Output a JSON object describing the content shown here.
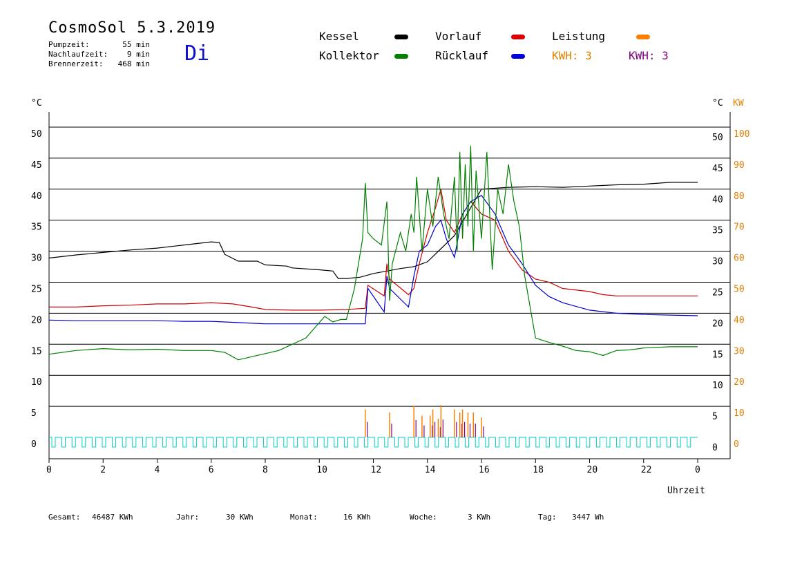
{
  "header": {
    "title": "CosmoSol 5.3.2019",
    "weekday": "Di",
    "stats": [
      {
        "label": "Pumpzeit:",
        "value": "55 min"
      },
      {
        "label": "Nachlaufzeit:",
        "value": "9 min"
      },
      {
        "label": "Brennerzeit:",
        "value": "468 min"
      }
    ]
  },
  "legend": {
    "kessel": "Kessel",
    "kollektor": "Kollektor",
    "vorlauf": "Vorlauf",
    "ruecklauf": "Rücklauf",
    "leistung": "Leistung",
    "kwh1": "KWH: 3",
    "kwh2": "KWH: 3"
  },
  "footer": [
    {
      "label": "Gesamt:",
      "value": "46487 KWh"
    },
    {
      "label": "Jahr:",
      "value": "30 KWh"
    },
    {
      "label": "Monat:",
      "value": "16 KWh"
    },
    {
      "label": "Woche:",
      "value": "3 KWh"
    },
    {
      "label": "Tag:",
      "value": "3447 Wh"
    }
  ],
  "chart_data": {
    "type": "line",
    "title": "CosmoSol 5.3.2019",
    "xlabel": "Uhrzeit",
    "ylabel_left": "°C",
    "ylabel_right": "°C",
    "ylabel_right2": "KW",
    "xlim": [
      0,
      24
    ],
    "ylim": [
      0,
      50
    ],
    "y2lim": [
      0,
      100
    ],
    "x_ticks": [
      "0",
      "2",
      "4",
      "6",
      "8",
      "10",
      "12",
      "14",
      "16",
      "18",
      "20",
      "22",
      "0"
    ],
    "y_ticks": [
      "0",
      "5",
      "10",
      "15",
      "20",
      "25",
      "30",
      "35",
      "40",
      "45",
      "50"
    ],
    "y2_ticks": [
      "0",
      "10",
      "20",
      "30",
      "40",
      "50",
      "60",
      "70",
      "80",
      "90",
      "100"
    ],
    "grid": true,
    "colors": {
      "kessel": "#000000",
      "kollektor": "#008000",
      "vorlauf": "#cc0000",
      "ruecklauf": "#0000cc",
      "leistung": "#ff8000",
      "kwh2": "#800080",
      "pump": "#00cccc",
      "axis_right2": "#e08000"
    },
    "series": [
      {
        "name": "Kessel",
        "color": "#000000",
        "x": [
          0,
          1,
          2,
          3,
          4,
          5,
          6,
          6.3,
          6.5,
          7,
          7.7,
          8,
          8.8,
          9,
          10,
          10.5,
          10.7,
          11,
          11.5,
          12,
          12.5,
          13,
          13.5,
          14,
          15,
          16,
          17,
          18,
          19,
          20,
          21,
          22,
          23,
          24
        ],
        "y": [
          28.9,
          29.4,
          29.8,
          30.2,
          30.5,
          31,
          31.5,
          31.4,
          29.5,
          28.4,
          28.4,
          27.8,
          27.6,
          27.3,
          27,
          26.8,
          25.6,
          25.6,
          25.8,
          26.4,
          26.8,
          27.2,
          27.5,
          28.3,
          32.5,
          40,
          40.3,
          40.4,
          40.3,
          40.5,
          40.7,
          40.8,
          41.1,
          41.1
        ]
      },
      {
        "name": "Vorlauf",
        "color": "#cc0000",
        "x": [
          0,
          1,
          2,
          3,
          4,
          5,
          6,
          6.8,
          7.5,
          8,
          9,
          10,
          11,
          11.7,
          11.8,
          12.4,
          12.5,
          12.6,
          13.3,
          13.5,
          13.7,
          14,
          14.3,
          14.5,
          14.7,
          15,
          15.3,
          15.6,
          16,
          16.5,
          17,
          17.5,
          18,
          18.5,
          19,
          20,
          20.5,
          21,
          22,
          23,
          24
        ],
        "y": [
          21,
          21,
          21.2,
          21.3,
          21.5,
          21.5,
          21.7,
          21.5,
          21,
          20.6,
          20.5,
          20.5,
          20.6,
          20.8,
          24.5,
          22.8,
          28,
          25.5,
          23,
          24,
          28,
          33,
          37,
          40,
          35,
          33,
          36,
          38,
          36,
          35,
          30,
          27,
          25.5,
          25,
          24,
          23.5,
          23,
          22.8,
          22.8,
          22.8,
          22.8
        ]
      },
      {
        "name": "Rücklauf",
        "color": "#0000cc",
        "x": [
          0,
          1,
          2,
          3,
          4,
          5,
          6,
          7,
          8,
          9,
          10,
          11,
          11.7,
          11.8,
          12.4,
          12.5,
          12.6,
          13.3,
          13.5,
          13.7,
          14,
          14.3,
          14.5,
          14.7,
          15,
          15.3,
          15.6,
          16,
          16.5,
          17,
          17.5,
          18,
          18.5,
          19,
          20,
          21,
          22,
          23,
          24
        ],
        "y": [
          18.9,
          18.8,
          18.8,
          18.8,
          18.8,
          18.7,
          18.7,
          18.5,
          18.3,
          18.3,
          18.3,
          18.3,
          18.3,
          24,
          20.2,
          26,
          24,
          21,
          26,
          30,
          31,
          34,
          35,
          32,
          29,
          36,
          38,
          39,
          36,
          31,
          28,
          24.5,
          22.7,
          21.7,
          20.5,
          20,
          19.8,
          19.7,
          19.6
        ]
      },
      {
        "name": "Kollektor",
        "color": "#008000",
        "x": [
          0,
          1,
          2,
          3,
          4,
          5,
          6,
          6.5,
          7,
          7.5,
          8,
          8.5,
          9,
          9.5,
          10,
          10.2,
          10.5,
          10.8,
          11,
          11.3,
          11.6,
          11.7,
          11.8,
          12,
          12.3,
          12.5,
          12.6,
          12.7,
          13,
          13.2,
          13.4,
          13.5,
          13.6,
          13.8,
          14,
          14.2,
          14.4,
          14.6,
          14.8,
          15,
          15.1,
          15.2,
          15.3,
          15.4,
          15.5,
          15.6,
          15.7,
          15.8,
          16,
          16.2,
          16.4,
          16.6,
          16.8,
          17,
          17.2,
          17.4,
          17.6,
          18,
          18.5,
          19,
          19.5,
          20,
          20.5,
          21,
          21.5,
          22,
          23,
          24
        ],
        "y": [
          13.4,
          14,
          14.3,
          14.1,
          14.2,
          14,
          14,
          13.7,
          12.5,
          13,
          13.5,
          14,
          15,
          16,
          18.5,
          19.5,
          18.6,
          19,
          19,
          24,
          32,
          41,
          33,
          32,
          31,
          38,
          22,
          28,
          33,
          30,
          36,
          33,
          42,
          30,
          40,
          34,
          42,
          36,
          32,
          42,
          30,
          46,
          32,
          44,
          34,
          47,
          30,
          43,
          32,
          46,
          27,
          40,
          36,
          44,
          38,
          34,
          26,
          16,
          15.3,
          14.7,
          14,
          13.8,
          13.2,
          14,
          14.1,
          14.4,
          14.6,
          14.6
        ]
      }
    ],
    "bars": {
      "name": "Leistung",
      "x": [
        11.7,
        12.6,
        13.5,
        13.8,
        14.1,
        14.2,
        14.4,
        14.5,
        15,
        15.2,
        15.3,
        15.5,
        15.7,
        16
      ],
      "y": [
        4.5,
        4,
        5.1,
        3.5,
        3.5,
        4.5,
        3,
        5.2,
        4.5,
        4,
        4.5,
        4,
        4,
        3.2
      ]
    }
  }
}
